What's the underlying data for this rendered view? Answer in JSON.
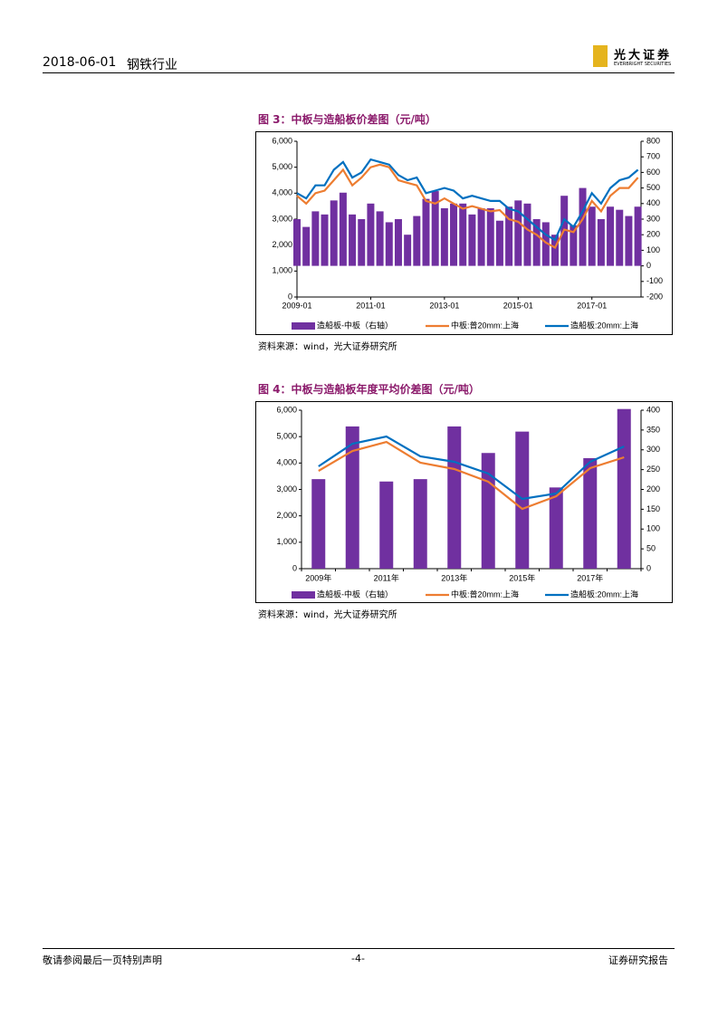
{
  "header": {
    "date": "2018-06-01",
    "industry": "钢铁行业",
    "logo_name": "光大证券",
    "logo_subtitle": "EVERBRIGHT SECURITIES"
  },
  "chart_data": [
    {
      "type": "combo",
      "title": "图 3：中板与造船板价差图（元/吨）",
      "source": "资料来源：wind，光大证券研究所",
      "x": [
        "2009-01",
        "2009-04",
        "2009-07",
        "2009-10",
        "2010-01",
        "2010-04",
        "2010-07",
        "2010-10",
        "2011-01",
        "2011-04",
        "2011-07",
        "2011-10",
        "2012-01",
        "2012-04",
        "2012-07",
        "2012-10",
        "2013-01",
        "2013-04",
        "2013-07",
        "2013-10",
        "2014-01",
        "2014-04",
        "2014-07",
        "2014-10",
        "2015-01",
        "2015-04",
        "2015-07",
        "2015-10",
        "2016-01",
        "2016-04",
        "2016-07",
        "2016-10",
        "2017-01",
        "2017-04",
        "2017-07",
        "2017-10",
        "2018-01",
        "2018-04"
      ],
      "xlim": [
        "2009-01",
        "2018-05"
      ],
      "xticks": [
        "2009-01",
        "2011-01",
        "2013-01",
        "2015-01",
        "2017-01"
      ],
      "ylim": [
        0,
        6000
      ],
      "yticks": [
        0,
        {
          "value": 1000,
          "label": "1,000"
        },
        {
          "value": 2000,
          "label": "2,000"
        },
        {
          "value": 3000,
          "label": "3,000"
        },
        {
          "value": 4000,
          "label": "4,000"
        },
        {
          "value": 5000,
          "label": "5,000"
        },
        {
          "value": 6000,
          "label": "6,000"
        }
      ],
      "y2lim": [
        -200,
        800
      ],
      "y2ticks": [
        -200,
        -100,
        0,
        100,
        200,
        300,
        400,
        500,
        600,
        700,
        800
      ],
      "series": [
        {
          "name": "造船板-中板（右轴）",
          "type": "bar",
          "axis": "y2",
          "color": "#7030a0",
          "values": [
            300,
            250,
            350,
            330,
            420,
            470,
            330,
            300,
            400,
            350,
            280,
            300,
            200,
            320,
            430,
            480,
            370,
            400,
            400,
            330,
            370,
            370,
            290,
            380,
            420,
            400,
            300,
            280,
            200,
            450,
            260,
            500,
            380,
            300,
            380,
            360,
            320,
            380
          ]
        },
        {
          "name": "中板:普20mm:上海",
          "type": "line",
          "color": "#ed7d31",
          "values": [
            3900,
            3600,
            4000,
            4100,
            4500,
            4900,
            4300,
            4600,
            5000,
            5100,
            5000,
            4500,
            4400,
            4300,
            3700,
            3600,
            3800,
            3600,
            3400,
            3500,
            3400,
            3300,
            3350,
            3000,
            2900,
            2600,
            2400,
            2100,
            1900,
            2600,
            2500,
            3000,
            3700,
            3300,
            3900,
            4200,
            4200,
            4600
          ]
        },
        {
          "name": "造船板:20mm:上海",
          "type": "line",
          "color": "#0070c0",
          "values": [
            4000,
            3800,
            4300,
            4300,
            4900,
            5200,
            4600,
            4800,
            5300,
            5200,
            5100,
            4700,
            4500,
            4600,
            4000,
            4100,
            4200,
            4100,
            3800,
            3900,
            3800,
            3700,
            3700,
            3400,
            3300,
            3000,
            2700,
            2400,
            2200,
            3000,
            2700,
            3300,
            4000,
            3600,
            4200,
            4500,
            4600,
            4900
          ]
        }
      ]
    },
    {
      "type": "combo",
      "title": "图 4：中板与造船板年度平均价差图（元/吨）",
      "source": "资料来源：wind，光大证券研究所",
      "categories": [
        "2009年",
        null,
        "2011年",
        null,
        "2013年",
        null,
        "2015年",
        null,
        "2017年",
        null
      ],
      "ylim": [
        0,
        6000
      ],
      "yticks": [
        0,
        {
          "value": 1000,
          "label": "1,000"
        },
        {
          "value": 2000,
          "label": "2,000"
        },
        {
          "value": 3000,
          "label": "3,000"
        },
        {
          "value": 4000,
          "label": "4,000"
        },
        {
          "value": 5000,
          "label": "5,000"
        },
        {
          "value": 6000,
          "label": "6,000"
        }
      ],
      "y2lim": [
        0,
        400
      ],
      "y2ticks": [
        0,
        50,
        100,
        150,
        200,
        250,
        300,
        350,
        400
      ],
      "series": [
        {
          "name": "造船板-中板（右轴）",
          "type": "bar",
          "axis": "y2",
          "color": "#7030a0",
          "values": [
            226,
            359,
            220,
            226,
            359,
            292,
            346,
            205,
            279,
            403
          ]
        },
        {
          "name": "中板:普20mm:上海",
          "type": "line",
          "color": "#ed7d31",
          "values": [
            3703,
            4457,
            4800,
            4011,
            3771,
            3291,
            2263,
            2743,
            3806,
            4217
          ]
        },
        {
          "name": "造船板:20mm:上海",
          "type": "line",
          "color": "#0070c0",
          "values": [
            3874,
            4731,
            5006,
            4251,
            4046,
            3600,
            2640,
            2846,
            4046,
            4629
          ]
        }
      ]
    }
  ],
  "footer": {
    "left": "敬请参阅最后一页特别声明",
    "page": "-4-",
    "right": "证券研究报告"
  }
}
